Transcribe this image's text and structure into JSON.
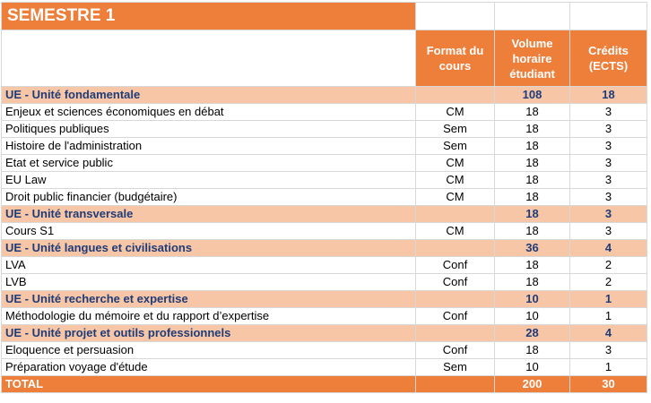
{
  "title": "SEMESTRE 1",
  "headers": {
    "format": "Format du cours",
    "volume": "Volume horaire étudiant",
    "credits": "Crédits (ECTS)"
  },
  "ue1": {
    "label": "UE - Unité fondamentale",
    "volume": "108",
    "credits": "18"
  },
  "r1": {
    "name": "Enjeux et sciences économiques en débat",
    "format": "CM",
    "volume": "18",
    "credits": "3"
  },
  "r2": {
    "name": "Politiques publiques",
    "format": "Sem",
    "volume": "18",
    "credits": "3"
  },
  "r3": {
    "name": "Histoire de l'administration",
    "format": "Sem",
    "volume": "18",
    "credits": "3"
  },
  "r4": {
    "name": "Etat et service public",
    "format": "CM",
    "volume": "18",
    "credits": "3"
  },
  "r5": {
    "name": "EU Law",
    "format": "CM",
    "volume": "18",
    "credits": "3"
  },
  "r6": {
    "name": "Droit public financier (budgétaire)",
    "format": "CM",
    "volume": "18",
    "credits": "3"
  },
  "ue2": {
    "label": "UE - Unité transversale",
    "volume": "18",
    "credits": "3"
  },
  "r7": {
    "name": "Cours S1",
    "format": "CM",
    "volume": "18",
    "credits": "3"
  },
  "ue3": {
    "label": "UE - Unité langues et civilisations",
    "volume": "36",
    "credits": "4"
  },
  "r8": {
    "name": "LVA",
    "format": "Conf",
    "volume": "18",
    "credits": "2"
  },
  "r9": {
    "name": "LVB",
    "format": "Conf",
    "volume": "18",
    "credits": "2"
  },
  "ue4": {
    "label": "UE - Unité recherche et expertise",
    "volume": "10",
    "credits": "1"
  },
  "r10": {
    "name": "Méthodologie du mémoire et du rapport d’expertise",
    "format": "Conf",
    "volume": "10",
    "credits": "1"
  },
  "ue5": {
    "label": "UE - Unité projet et outils professionnels",
    "volume": "28",
    "credits": "4"
  },
  "r11": {
    "name": "Eloquence et persuasion",
    "format": "Conf",
    "volume": "18",
    "credits": "3"
  },
  "r12": {
    "name": "Préparation voyage d'étude",
    "format": "Sem",
    "volume": "10",
    "credits": "1"
  },
  "total": {
    "label": "TOTAL",
    "volume": "200",
    "credits": "30"
  }
}
